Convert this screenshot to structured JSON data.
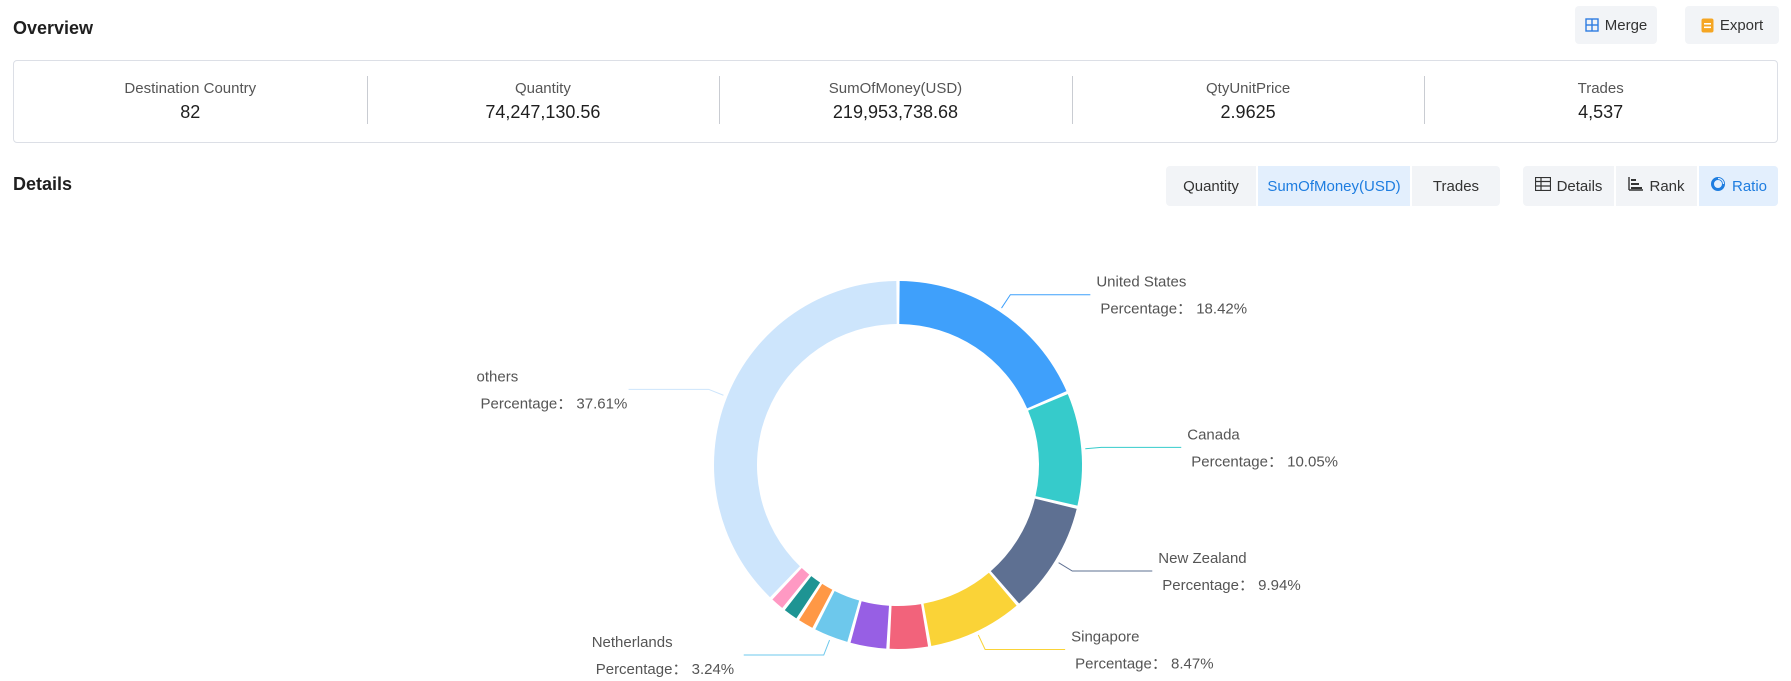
{
  "overview": {
    "title": "Overview"
  },
  "toolbar": {
    "merge_label": "Merge",
    "export_label": "Export"
  },
  "summary": [
    {
      "label": "Destination Country",
      "value": "82"
    },
    {
      "label": "Quantity",
      "value": "74,247,130.56"
    },
    {
      "label": "SumOfMoney(USD)",
      "value": "219,953,738.68"
    },
    {
      "label": "QtyUnitPrice",
      "value": "2.9625"
    },
    {
      "label": "Trades",
      "value": "4,537"
    }
  ],
  "details": {
    "title": "Details",
    "metric_tabs": [
      "Quantity",
      "SumOfMoney(USD)",
      "Trades"
    ],
    "active_metric": "SumOfMoney(USD)",
    "view_tabs": [
      "Details",
      "Rank",
      "Ratio"
    ],
    "active_view": "Ratio"
  },
  "chart_data": {
    "type": "pie",
    "donut": true,
    "percentage_prefix": "Percentage：",
    "slices": [
      {
        "name": "United States",
        "value": 18.42,
        "color": "#3fa0fb",
        "label": "Percentage：  18.42%"
      },
      {
        "name": "Canada",
        "value": 10.05,
        "color": "#36cbcb",
        "label": "Percentage：  10.05%"
      },
      {
        "name": "New Zealand",
        "value": 9.94,
        "color": "#5e7092",
        "label": "Percentage：  9.94%"
      },
      {
        "name": "Singapore",
        "value": 8.47,
        "color": "#fad337",
        "label": "Percentage：  8.47%"
      },
      {
        "name": "",
        "value": 3.6,
        "color": "#f2637b",
        "label": ""
      },
      {
        "name": "",
        "value": 3.4,
        "color": "#975fe4",
        "label": ""
      },
      {
        "name": "Netherlands",
        "value": 3.24,
        "color": "#6dc8ec",
        "label": "Percentage：  3.24%"
      },
      {
        "name": "",
        "value": 1.6,
        "color": "#ff9845",
        "label": ""
      },
      {
        "name": "",
        "value": 1.5,
        "color": "#1e9493",
        "label": ""
      },
      {
        "name": "",
        "value": 1.4,
        "color": "#ff99c3",
        "label": ""
      },
      {
        "name": "others",
        "value": 37.61,
        "color": "#cde5fc",
        "label": "Percentage：  37.61%"
      }
    ]
  }
}
